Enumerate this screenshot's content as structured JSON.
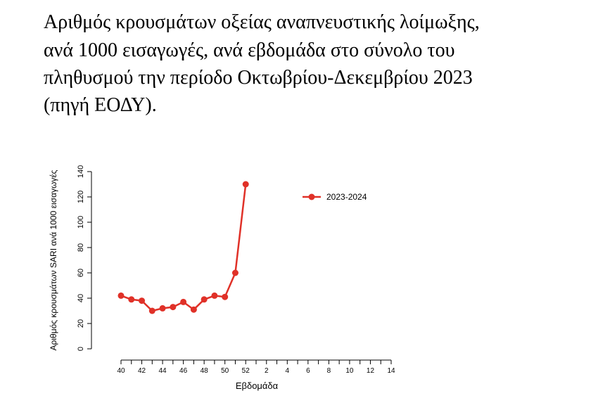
{
  "chart_data": {
    "type": "line",
    "title": [
      "Αριθμός κρουσμάτων οξείας αναπνευστικής λοίμωξης,",
      "ανά 1000 εισαγωγές, ανά εβδομάδα στο σύνολο του",
      "πληθυσμού την περίοδο Οκτωβρίου-Δεκεμβρίου 2023",
      "(πηγή ΕΟΔΥ)."
    ],
    "x_label": "Εβδομάδα",
    "y_label": "Αριθμός κρουσμάτων SARI ανά 1000 εισαγωγές",
    "categories": [
      "40",
      null,
      "42",
      null,
      "44",
      null,
      "46",
      null,
      "48",
      null,
      "50",
      null,
      "52",
      null,
      "2",
      null,
      "4",
      null,
      "6",
      null,
      "8",
      null,
      "10",
      null,
      "12",
      null,
      "14"
    ],
    "series": [
      {
        "name": "2023-2024",
        "color": "#e03128",
        "values": [
          42,
          39,
          38,
          30,
          32,
          33,
          37,
          31,
          39,
          42,
          41,
          60,
          130,
          null,
          null,
          null,
          null,
          null,
          null,
          null,
          null,
          null,
          null,
          null,
          null,
          null,
          null
        ]
      }
    ],
    "ylim": [
      0,
      140
    ],
    "yticks": [
      0,
      20,
      40,
      60,
      80,
      100,
      120,
      140
    ],
    "legend": "top-right"
  }
}
